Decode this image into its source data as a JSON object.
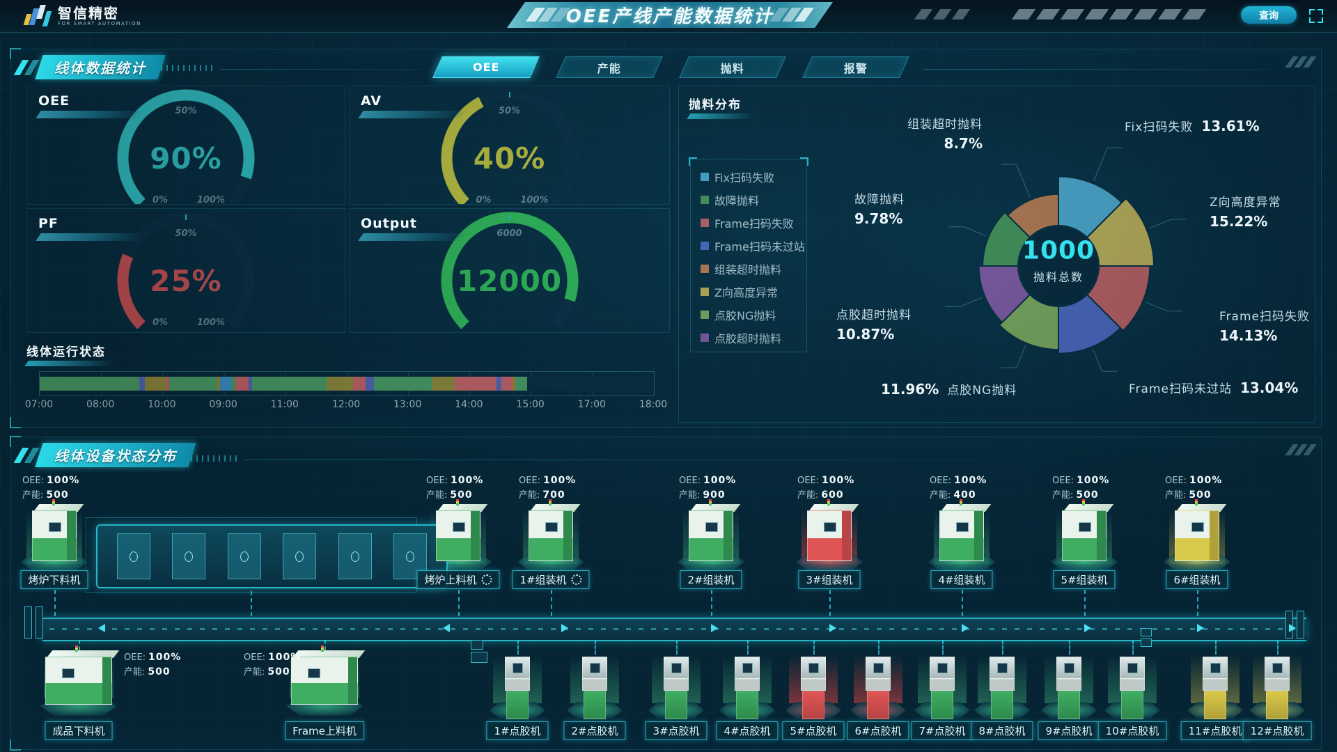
{
  "header": {
    "logo_title": "智信精密",
    "logo_subtitle": "FOR SMART AUTOMATION",
    "title": "OEE产线产能数据统计",
    "query_button": "查询"
  },
  "panels": {
    "line_stats_title": "线体数据统计",
    "device_status_title": "线体设备状态分布",
    "run_state_title": "线体运行状态",
    "scrap_title": "抛料分布"
  },
  "tabs": [
    {
      "label": "OEE",
      "active": true
    },
    {
      "label": "产能",
      "active": false
    },
    {
      "label": "抛料",
      "active": false
    },
    {
      "label": "报警",
      "active": false
    }
  ],
  "chart_data": [
    {
      "id": "gauge-oee",
      "type": "gauge",
      "title": "OEE",
      "value": 90,
      "display": "90%",
      "range": [
        0,
        100
      ],
      "ticks": {
        "min": "0%",
        "mid": "50%",
        "max": "100%"
      },
      "color": "#3be0e0",
      "fraction": 0.9
    },
    {
      "id": "gauge-av",
      "type": "gauge",
      "title": "AV",
      "value": 40,
      "display": "40%",
      "range": [
        0,
        100
      ],
      "ticks": {
        "min": "0%",
        "mid": "50%",
        "max": "100%"
      },
      "color": "#e8e23f",
      "fraction": 0.4
    },
    {
      "id": "gauge-pf",
      "type": "gauge",
      "title": "PF",
      "value": 25,
      "display": "25%",
      "range": [
        0,
        100
      ],
      "ticks": {
        "min": "0%",
        "mid": "50%",
        "max": "100%"
      },
      "color": "#f25a5a",
      "fraction": 0.25
    },
    {
      "id": "gauge-output",
      "type": "gauge",
      "title": "Output",
      "value": 12000,
      "display": "12000",
      "range": [
        0,
        13333
      ],
      "ticks": {
        "min": "",
        "mid": "6000",
        "max": ""
      },
      "color": "#3bd95e",
      "fraction": 0.9
    },
    {
      "id": "run-timeline",
      "type": "timeline",
      "title": "线体运行状态",
      "x_labels": [
        "07:00",
        "08:00",
        "10:00",
        "09:00",
        "11:00",
        "12:00",
        "13:00",
        "14:00",
        "15:00",
        "17:00",
        "18:00"
      ],
      "statuses": {
        "run": "#5aba72",
        "idle": "#b3a23e",
        "alarm": "#f27272",
        "pause": "#6677d9",
        "feed": "#48aaec",
        "warn": "#d1913c",
        "empty": "#0b2e41"
      },
      "segments": [
        [
          "run",
          16.2
        ],
        [
          "pause",
          0.9
        ],
        [
          "idle",
          3.5
        ],
        [
          "alarm",
          0.5
        ],
        [
          "run",
          7.7
        ],
        [
          "idle",
          0.6
        ],
        [
          "feed",
          1.8
        ],
        [
          "run",
          0.7
        ],
        [
          "alarm",
          2.1
        ],
        [
          "pause",
          0.6
        ],
        [
          "run",
          12.1
        ],
        [
          "idle",
          4.3
        ],
        [
          "alarm",
          2.1
        ],
        [
          "pause",
          1.3
        ],
        [
          "run",
          9.4
        ],
        [
          "idle",
          3.8
        ],
        [
          "alarm",
          6.8
        ],
        [
          "pause",
          0.8
        ],
        [
          "alarm",
          1.7
        ],
        [
          "warn",
          0.5
        ],
        [
          "run",
          2.0
        ],
        [
          "empty",
          20.5
        ]
      ]
    },
    {
      "id": "scrap-pie",
      "type": "rose-pie",
      "title": "抛料分布",
      "center_value": "1000",
      "center_label": "抛料总数",
      "slices": [
        {
          "label": "Fix扫码失败",
          "pct": 13.61,
          "display": "13.61%",
          "color": "#5cc1e8"
        },
        {
          "label": "Z向高度异常",
          "pct": 15.22,
          "display": "15.22%",
          "color": "#e3c95c"
        },
        {
          "label": "Frame扫码失败",
          "pct": 14.13,
          "display": "14.13%",
          "color": "#e06a6a"
        },
        {
          "label": "Frame扫码未过站",
          "pct": 13.04,
          "display": "13.04%",
          "color": "#5b74d9"
        },
        {
          "label": "点胶NG抛料",
          "pct": 11.96,
          "display": "11.96%",
          "color": "#95c263"
        },
        {
          "label": "点胶超时抛料",
          "pct": 10.87,
          "display": "10.87%",
          "color": "#9c63b8"
        },
        {
          "label": "故障抛料",
          "pct": 9.78,
          "display": "9.78%",
          "color": "#57a85e"
        },
        {
          "label": "组装超时抛料",
          "pct": 8.7,
          "display": "8.7%",
          "color": "#dd8a52"
        }
      ],
      "legend": [
        "Fix扫码失败",
        "故障抛料",
        "Frame扫码失败",
        "Frame扫码未过站",
        "组装超时抛料",
        "Z向高度异常",
        "点胶NG抛料",
        "点胶超时抛料"
      ]
    }
  ],
  "line_map": {
    "oee_label": "OEE:",
    "cap_label": "产能:",
    "machines_top": [
      {
        "name": "烤炉下料机",
        "oee": "100%",
        "cap": "500",
        "status": "green",
        "gear": false
      },
      {
        "name": "烤炉上料机",
        "oee": "100%",
        "cap": "500",
        "status": "green",
        "gear": true
      },
      {
        "name": "1#组装机",
        "oee": "100%",
        "cap": "700",
        "status": "green",
        "gear": true
      },
      {
        "name": "2#组装机",
        "oee": "100%",
        "cap": "900",
        "status": "green",
        "gear": false
      },
      {
        "name": "3#组装机",
        "oee": "100%",
        "cap": "600",
        "status": "red",
        "gear": false
      },
      {
        "name": "4#组装机",
        "oee": "100%",
        "cap": "400",
        "status": "green",
        "gear": false
      },
      {
        "name": "5#组装机",
        "oee": "100%",
        "cap": "500",
        "status": "green",
        "gear": false
      },
      {
        "name": "6#组装机",
        "oee": "100%",
        "cap": "500",
        "status": "yellow",
        "gear": false
      }
    ],
    "machines_bottom": [
      {
        "name": "成品下料机",
        "oee": "100%",
        "cap": "500",
        "status": "green"
      },
      {
        "name": "Frame上料机",
        "oee": "100%",
        "cap": "500",
        "status": "green"
      },
      {
        "name": "1#点胶机",
        "status": "green"
      },
      {
        "name": "2#点胶机",
        "status": "green"
      },
      {
        "name": "3#点胶机",
        "status": "green"
      },
      {
        "name": "4#点胶机",
        "status": "green"
      },
      {
        "name": "5#点胶机",
        "status": "red"
      },
      {
        "name": "6#点胶机",
        "status": "red"
      },
      {
        "name": "7#点胶机",
        "status": "green"
      },
      {
        "name": "8#点胶机",
        "status": "green"
      },
      {
        "name": "9#点胶机",
        "status": "green"
      },
      {
        "name": "10#点胶机",
        "status": "green"
      },
      {
        "name": "11#点胶机",
        "status": "yellow"
      },
      {
        "name": "12#点胶机",
        "status": "yellow"
      }
    ]
  }
}
